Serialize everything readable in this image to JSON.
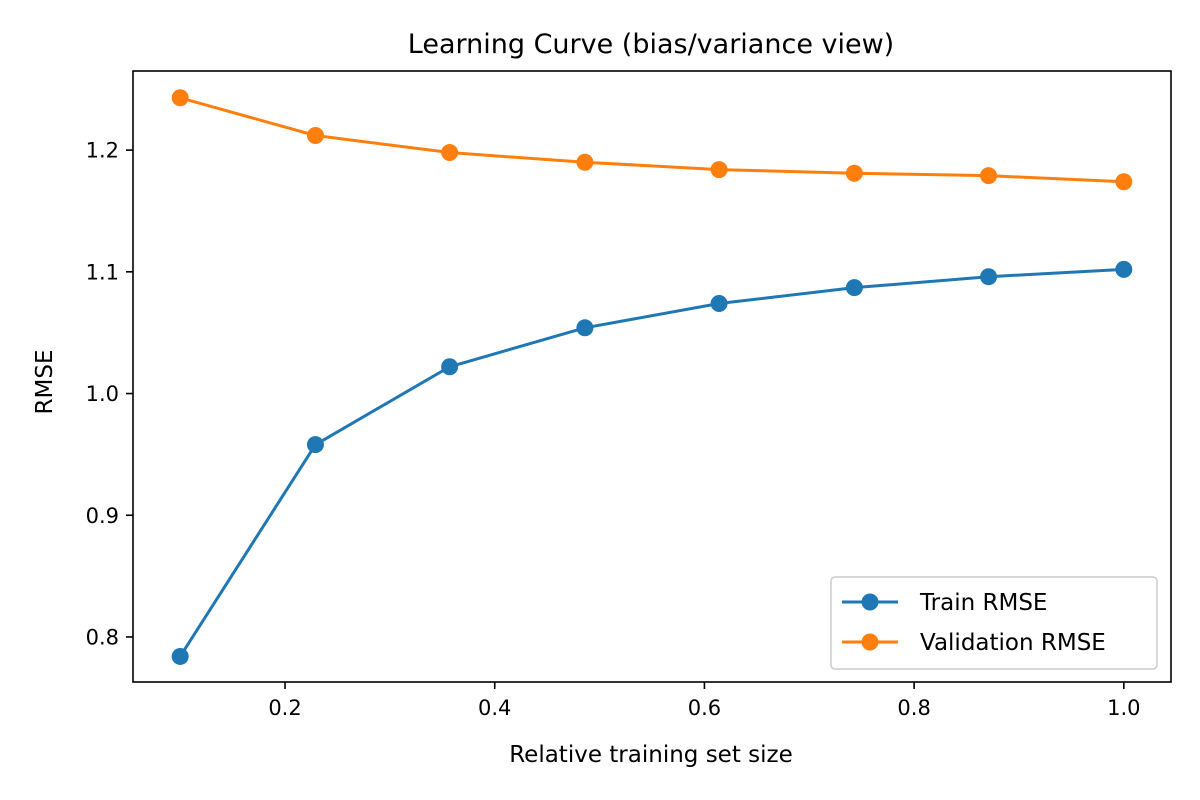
{
  "chart_data": {
    "type": "line",
    "title": "Learning Curve (bias/variance view)",
    "xlabel": "Relative training set size",
    "ylabel": "RMSE",
    "xlim": [
      0.055,
      1.045
    ],
    "ylim": [
      0.763,
      1.265
    ],
    "xticks": [
      0.2,
      0.4,
      0.6,
      0.8,
      1.0
    ],
    "xtick_labels": [
      "0.2",
      "0.4",
      "0.6",
      "0.8",
      "1.0"
    ],
    "yticks": [
      0.8,
      0.9,
      1.0,
      1.1,
      1.2
    ],
    "ytick_labels": [
      "0.8",
      "0.9",
      "1.0",
      "1.1",
      "1.2"
    ],
    "x": [
      0.1,
      0.229,
      0.357,
      0.486,
      0.614,
      0.743,
      0.871,
      1.0
    ],
    "series": [
      {
        "name": "Train RMSE",
        "color": "#1f77b4",
        "marker": "circle",
        "values": [
          0.784,
          0.958,
          1.022,
          1.054,
          1.074,
          1.087,
          1.096,
          1.102
        ]
      },
      {
        "name": "Validation RMSE",
        "color": "#ff7f0e",
        "marker": "circle",
        "values": [
          1.243,
          1.212,
          1.198,
          1.19,
          1.184,
          1.181,
          1.179,
          1.174
        ]
      }
    ],
    "grid": false,
    "legend_position": "lower right"
  }
}
